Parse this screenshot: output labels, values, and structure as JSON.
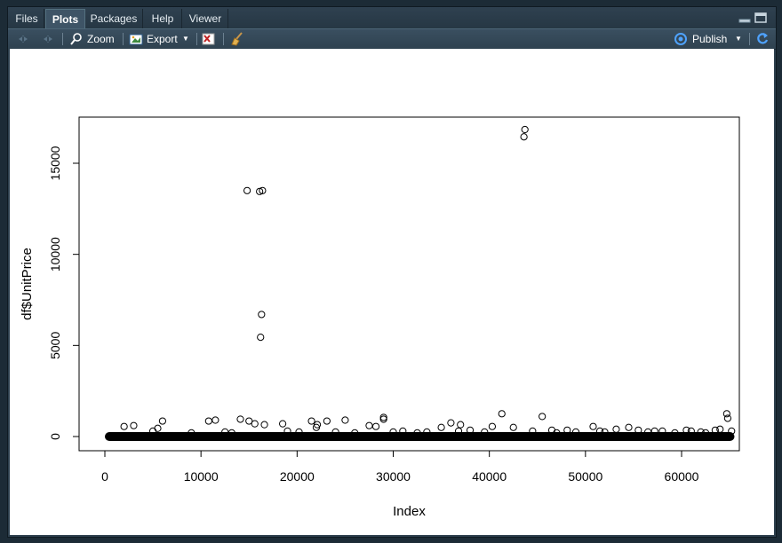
{
  "tabs": [
    {
      "label": "Files",
      "active": false
    },
    {
      "label": "Plots",
      "active": true
    },
    {
      "label": "Packages",
      "active": false
    },
    {
      "label": "Help",
      "active": false
    },
    {
      "label": "Viewer",
      "active": false
    }
  ],
  "toolbar": {
    "zoom_label": "Zoom",
    "export_label": "Export",
    "publish_label": "Publish"
  },
  "icons": {
    "back": "arrow-left-icon",
    "forward": "arrow-right-icon",
    "zoom": "magnifier-icon",
    "export": "export-image-icon",
    "remove": "remove-plot-icon",
    "clear": "broom-icon",
    "publish": "publish-icon",
    "refresh": "refresh-icon"
  },
  "colors": {
    "accent": "#4fa3ff",
    "panel": "#2d3f4d",
    "plot_bg": "#ffffff"
  },
  "chart_data": {
    "type": "scatter",
    "title": "",
    "xlabel": "Index",
    "ylabel": "df$UnitPrice",
    "xlim": [
      0,
      65000
    ],
    "ylim": [
      0,
      16500
    ],
    "x_ticks": [
      "0",
      "10000",
      "20000",
      "30000",
      "40000",
      "50000",
      "60000"
    ],
    "y_ticks": [
      "0",
      "5000",
      "10000",
      "15000"
    ],
    "dense_band": {
      "from": 0,
      "to": 65500,
      "y": 0
    },
    "points": [
      [
        14800,
        13500
      ],
      [
        16100,
        13450
      ],
      [
        16400,
        13500
      ],
      [
        16300,
        6700
      ],
      [
        16200,
        5450
      ],
      [
        43700,
        16850
      ],
      [
        43600,
        16450
      ],
      [
        41300,
        1250
      ],
      [
        64700,
        1250
      ],
      [
        64800,
        1000
      ],
      [
        45500,
        1100
      ],
      [
        29000,
        1050
      ],
      [
        29000,
        950
      ],
      [
        6000,
        850
      ],
      [
        10800,
        850
      ],
      [
        11500,
        900
      ],
      [
        14100,
        950
      ],
      [
        15000,
        850
      ],
      [
        15600,
        700
      ],
      [
        16600,
        650
      ],
      [
        18500,
        700
      ],
      [
        21500,
        850
      ],
      [
        22100,
        650
      ],
      [
        23100,
        850
      ],
      [
        25000,
        900
      ],
      [
        27500,
        600
      ],
      [
        28200,
        550
      ],
      [
        35000,
        500
      ],
      [
        36000,
        750
      ],
      [
        37000,
        650
      ],
      [
        40300,
        550
      ],
      [
        42500,
        500
      ],
      [
        48100,
        350
      ],
      [
        50800,
        550
      ],
      [
        53200,
        400
      ],
      [
        54500,
        500
      ],
      [
        58000,
        300
      ],
      [
        60500,
        350
      ],
      [
        62000,
        250
      ],
      [
        64000,
        400
      ],
      [
        65200,
        300
      ],
      [
        2000,
        550
      ],
      [
        3000,
        600
      ],
      [
        5000,
        300
      ],
      [
        5500,
        450
      ],
      [
        9000,
        200
      ],
      [
        19000,
        300
      ],
      [
        22000,
        500
      ],
      [
        24000,
        250
      ],
      [
        31000,
        300
      ],
      [
        32500,
        200
      ],
      [
        38000,
        350
      ],
      [
        39500,
        250
      ],
      [
        44500,
        300
      ],
      [
        46500,
        350
      ],
      [
        47000,
        200
      ],
      [
        49000,
        250
      ],
      [
        51500,
        300
      ],
      [
        52000,
        250
      ],
      [
        55500,
        350
      ],
      [
        56500,
        250
      ],
      [
        57200,
        300
      ],
      [
        59300,
        200
      ],
      [
        61000,
        300
      ],
      [
        62500,
        200
      ],
      [
        63500,
        350
      ],
      [
        12500,
        250
      ],
      [
        13200,
        200
      ],
      [
        20200,
        250
      ],
      [
        26000,
        200
      ],
      [
        30000,
        250
      ],
      [
        33500,
        250
      ],
      [
        36800,
        300
      ]
    ]
  }
}
